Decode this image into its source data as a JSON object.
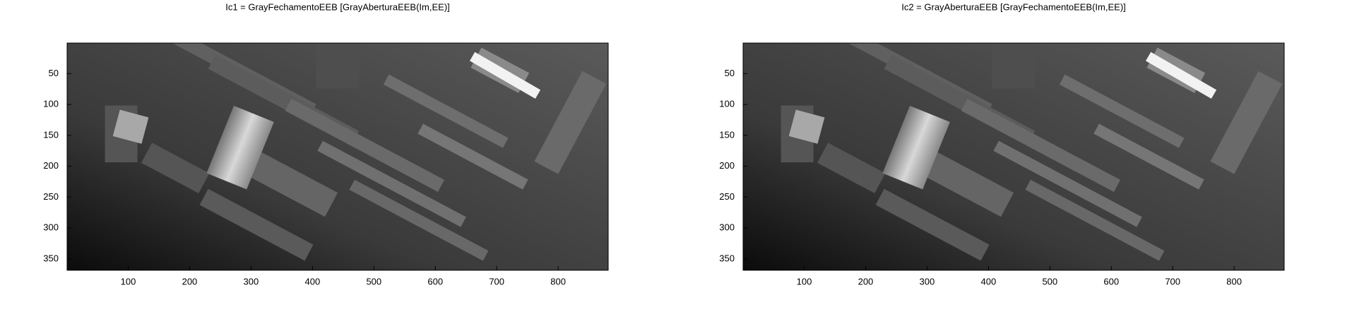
{
  "chart_data": [
    {
      "type": "image",
      "title": "Ic1 = GrayFechamentoEEB [GrayAberturaEEB(Im,EE)]",
      "xlim": [
        0.5,
        881.5
      ],
      "ylim": [
        0.5,
        368.5
      ],
      "y_direction": "reverse",
      "xticks": [
        100,
        200,
        300,
        400,
        500,
        600,
        700,
        800
      ],
      "yticks": [
        50,
        100,
        150,
        200,
        250,
        300,
        350
      ],
      "colormap": "gray"
    },
    {
      "type": "image",
      "title": "Ic2 = GrayAberturaEEB [GrayFechamentoEEB(Im,EE)]",
      "xlim": [
        0.5,
        881.5
      ],
      "ylim": [
        0.5,
        368.5
      ],
      "y_direction": "reverse",
      "xticks": [
        100,
        200,
        300,
        400,
        500,
        600,
        700,
        800
      ],
      "yticks": [
        50,
        100,
        150,
        200,
        250,
        300,
        350
      ],
      "colormap": "gray"
    }
  ]
}
